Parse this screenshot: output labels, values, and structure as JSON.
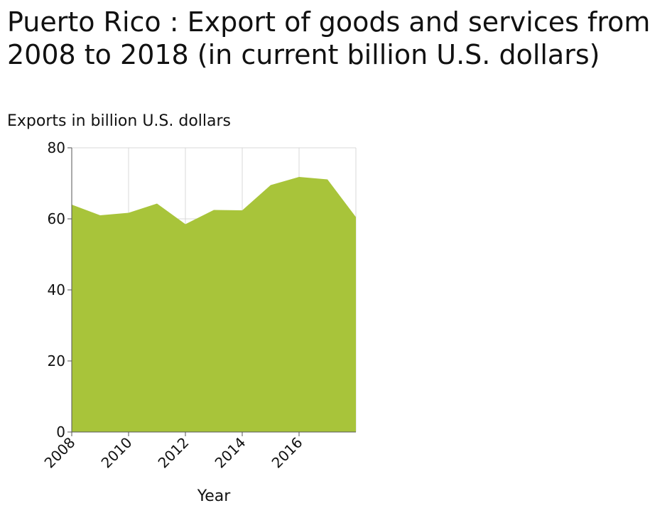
{
  "chart_data": {
    "type": "area",
    "title": "Puerto Rico : Export of goods and services from 2008 to 2018 (in current billion U.S. dollars)",
    "ylabel": "Exports in billion U.S. dollars",
    "xlabel": "Year",
    "x": [
      2008,
      2009,
      2010,
      2011,
      2012,
      2013,
      2014,
      2015,
      2016,
      2017,
      2018
    ],
    "values": [
      64.0,
      61.0,
      61.7,
      64.3,
      58.5,
      62.5,
      62.4,
      69.5,
      71.8,
      71.1,
      60.5
    ],
    "xlim": [
      2008,
      2018
    ],
    "ylim": [
      0,
      80
    ],
    "xticks": [
      "2008",
      "2010",
      "2012",
      "2014",
      "2016"
    ],
    "yticks": [
      "0",
      "20",
      "40",
      "60",
      "80"
    ],
    "grid": true,
    "fill_color": "#a8c43a"
  }
}
